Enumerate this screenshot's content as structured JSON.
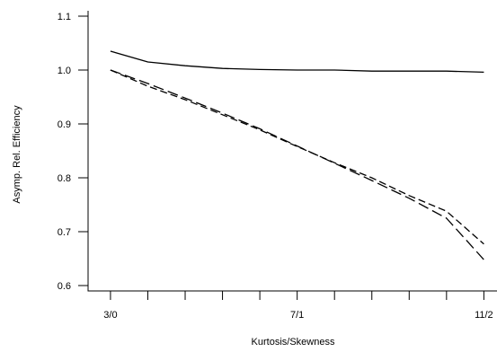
{
  "chart_data": {
    "type": "line",
    "xlabel": "Kurtosis/Skewness",
    "ylabel": "Asymp. Rel. Efficiency",
    "x_tick_labels": [
      {
        "x": 0,
        "label": "3/0"
      },
      {
        "x": 5,
        "label": "7/1"
      },
      {
        "x": 10,
        "label": "11/2"
      }
    ],
    "x_minor_ticks": [
      0,
      1,
      2,
      3,
      4,
      5,
      6,
      7,
      8,
      9,
      10
    ],
    "xlim": [
      -0.6,
      10.4
    ],
    "ylim": [
      0.59,
      1.11
    ],
    "y_ticks": [
      0.6,
      0.7,
      0.8,
      0.9,
      1.0,
      1.1
    ],
    "y_tick_labels": [
      "0.6",
      "0.7",
      "0.8",
      "0.9",
      "1.0",
      "1.1"
    ],
    "grid": false,
    "legend": "none",
    "series": [
      {
        "style": "solid",
        "x": [
          0,
          1,
          2,
          3,
          4,
          5,
          6,
          7,
          8,
          9,
          10
        ],
        "y": [
          1.035,
          1.015,
          1.008,
          1.003,
          1.001,
          1.0,
          1.0,
          0.998,
          0.998,
          0.998,
          0.996
        ]
      },
      {
        "style": "dashed",
        "x": [
          0,
          1,
          2,
          3,
          4,
          5,
          6,
          7,
          8,
          9,
          10
        ],
        "y": [
          1.0,
          0.97,
          0.945,
          0.917,
          0.889,
          0.858,
          0.828,
          0.8,
          0.767,
          0.738,
          0.677
        ]
      },
      {
        "style": "longdash",
        "x": [
          0,
          1,
          2,
          3,
          4,
          5,
          6,
          7,
          8,
          9,
          10
        ],
        "y": [
          1.0,
          0.975,
          0.948,
          0.92,
          0.891,
          0.859,
          0.827,
          0.795,
          0.762,
          0.725,
          0.648
        ]
      }
    ]
  }
}
